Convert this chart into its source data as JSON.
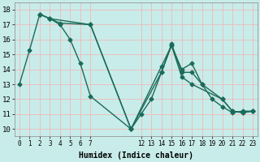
{
  "xlabel": "Humidex (Indice chaleur)",
  "background_color": "#c8ece9",
  "grid_color": "#e8c0c0",
  "line_color": "#1a6b5a",
  "series": [
    {
      "x": [
        0,
        1,
        2,
        3,
        4,
        5,
        6,
        7,
        11,
        12,
        13,
        14,
        15,
        16,
        17,
        18,
        19,
        20,
        21,
        22,
        23
      ],
      "y": [
        13.0,
        15.3,
        17.7,
        17.4,
        17.0,
        16.0,
        14.4,
        12.2,
        10.0,
        11.0,
        12.0,
        13.8,
        15.7,
        13.8,
        13.8,
        13.0,
        12.0,
        11.5,
        11.1,
        11.2,
        11.2
      ]
    },
    {
      "x": [
        2,
        3,
        4,
        7,
        11,
        14,
        15,
        16,
        17,
        18,
        20,
        21,
        22,
        23
      ],
      "y": [
        17.7,
        17.4,
        17.1,
        17.0,
        10.0,
        14.2,
        15.6,
        14.0,
        14.4,
        13.0,
        12.0,
        11.2,
        11.1,
        11.2
      ]
    },
    {
      "x": [
        2,
        3,
        7,
        11,
        14,
        15,
        16,
        17,
        20,
        21,
        22,
        23
      ],
      "y": [
        17.7,
        17.4,
        17.0,
        10.0,
        13.8,
        15.6,
        13.5,
        13.0,
        12.0,
        11.2,
        11.1,
        11.2
      ]
    }
  ],
  "xlim": [
    -0.5,
    23.5
  ],
  "ylim": [
    9.5,
    18.5
  ],
  "xtick_positions": [
    0,
    1,
    2,
    3,
    4,
    5,
    6,
    7,
    12,
    13,
    14,
    15,
    16,
    17,
    18,
    19,
    20,
    21,
    22,
    23
  ],
  "xtick_labels": [
    "0",
    "1",
    "2",
    "3",
    "4",
    "5",
    "6",
    "7",
    "12",
    "13",
    "14",
    "15",
    "16",
    "17",
    "18",
    "19",
    "20",
    "21",
    "22",
    "23"
  ],
  "ytick_positions": [
    10,
    11,
    12,
    13,
    14,
    15,
    16,
    17,
    18
  ],
  "ytick_labels": [
    "10",
    "11",
    "12",
    "13",
    "14",
    "15",
    "16",
    "17",
    "18"
  ],
  "marker": "D",
  "markersize": 2.5,
  "linewidth": 1.0,
  "tick_fontsize": 5.5,
  "xlabel_fontsize": 7.0
}
